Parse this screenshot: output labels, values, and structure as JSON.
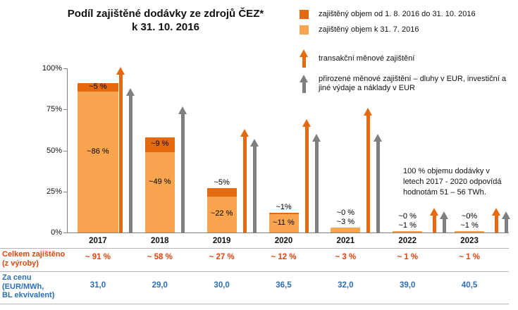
{
  "title": {
    "line1": "Podíl zajištěné dodávky ze zdrojů ČEZ*",
    "line2": "k 31. 10. 2016"
  },
  "note": "100 % objemu dodávky v letech 2017 - 2020 odpovídá hodnotám 51 – 56 TWh.",
  "colors": {
    "dark_orange": "#e56a0d",
    "light_orange": "#f9a54f",
    "gray": "#7f7f7f",
    "axis": "#808080",
    "divider": "#b5b5b5",
    "red_text": "#e2440c",
    "blue_text": "#2a6eb4"
  },
  "legend": {
    "items": [
      {
        "icon": "square-dark-orange",
        "label": "zajištěný objem od 1. 8. 2016 do 31. 10. 2016"
      },
      {
        "icon": "square-light-orange",
        "label": "zajištěný objem k 31. 7. 2016"
      },
      {
        "icon": "arrow-orange",
        "label": "transakční měnové zajištění"
      },
      {
        "icon": "arrow-gray",
        "label": "přirozené měnové zajištění – dluhy v EUR, investiční a jiné výdaje a náklady v EUR"
      }
    ]
  },
  "chart_data": {
    "type": "bar",
    "stacked": true,
    "title": "Podíl zajištěné dodávky ze zdrojů ČEZ* k 31. 10. 2016",
    "categories": [
      "2017",
      "2018",
      "2019",
      "2020",
      "2021",
      "2022",
      "2023"
    ],
    "series": [
      {
        "name": "zajištěný objem k 31. 7. 2016",
        "color_key": "light_orange",
        "values": [
          86,
          49,
          22,
          11,
          3,
          1,
          1
        ],
        "labels": [
          {
            "text": "~86 %",
            "pos": "in"
          },
          {
            "text": "~49 %",
            "pos": "in"
          },
          {
            "text": "~22 %",
            "pos": "in"
          },
          {
            "text": "~11 %",
            "pos": "in"
          },
          {
            "text": "~3 %",
            "pos": "above"
          },
          {
            "text": "~1 %",
            "pos": "above"
          },
          {
            "text": "~1 %",
            "pos": "above"
          }
        ]
      },
      {
        "name": "zajištěný objem od 1. 8. 2016 do 31. 10. 2016",
        "color_key": "dark_orange",
        "values": [
          5,
          9,
          5,
          1,
          0,
          0,
          0
        ],
        "labels": [
          {
            "text": "~5 %",
            "pos": "in"
          },
          {
            "text": "~9 %",
            "pos": "in"
          },
          {
            "text": "~5%",
            "pos": "above"
          },
          {
            "text": "~1%",
            "pos": "above"
          },
          {
            "text": "~0 %",
            "pos": "above"
          },
          {
            "text": "~0 %",
            "pos": "above"
          },
          {
            "text": "~0%",
            "pos": "above"
          }
        ]
      }
    ],
    "arrows": {
      "orange_legend": "transakční měnové zajištění",
      "gray_legend": "přirozené měnové zajištění",
      "tips_pct": [
        {
          "orange": 101,
          "gray": 88
        },
        {
          "orange": null,
          "gray": 77
        },
        {
          "orange": 63,
          "gray": 57
        },
        {
          "orange": 69,
          "gray": 60
        },
        {
          "orange": 76,
          "gray": 60
        },
        {
          "orange": 15,
          "gray": 13
        },
        {
          "orange": 15,
          "gray": 13
        }
      ]
    },
    "y_ticks": [
      0,
      25,
      50,
      75,
      100
    ],
    "ylim": [
      0,
      100
    ],
    "grid": false,
    "legend_position": "top-right"
  },
  "table": {
    "rows": [
      {
        "name": "total-hedged",
        "label_lines": [
          "Celkem zajištěno",
          "(z výroby)"
        ],
        "color_key": "red_text",
        "values": [
          "~ 91 %",
          "~ 58 %",
          "~ 27 %",
          "~ 12 %",
          "~ 3 %",
          "~ 1 %",
          "~ 1 %"
        ]
      },
      {
        "name": "price",
        "label_lines": [
          "Za cenu",
          "(EUR/MWh,",
          "BL ekvivalent)"
        ],
        "color_key": "blue_text",
        "values": [
          "31,0",
          "29,0",
          "30,0",
          "36,5",
          "32,0",
          "39,0",
          "40,5"
        ]
      }
    ]
  }
}
